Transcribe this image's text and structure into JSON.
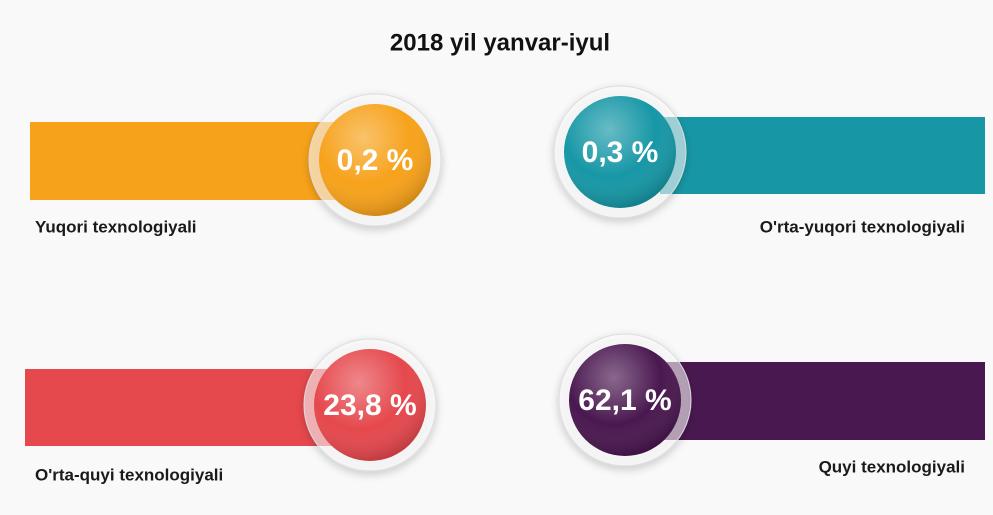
{
  "title": "2018 yil yanvar-iyul",
  "items": [
    {
      "label": "Yuqori texnologiyali",
      "value": "0,2 %",
      "color": "#f7a21b"
    },
    {
      "label": "O'rta-yuqori texnologiyali",
      "value": "0,3 %",
      "color": "#1797a6"
    },
    {
      "label": "O'rta-quyi texnologiyali",
      "value": "23,8 %",
      "color": "#e5484d"
    },
    {
      "label": "Quyi texnologiyali",
      "value": "62,1 %",
      "color": "#4a1850"
    }
  ]
}
